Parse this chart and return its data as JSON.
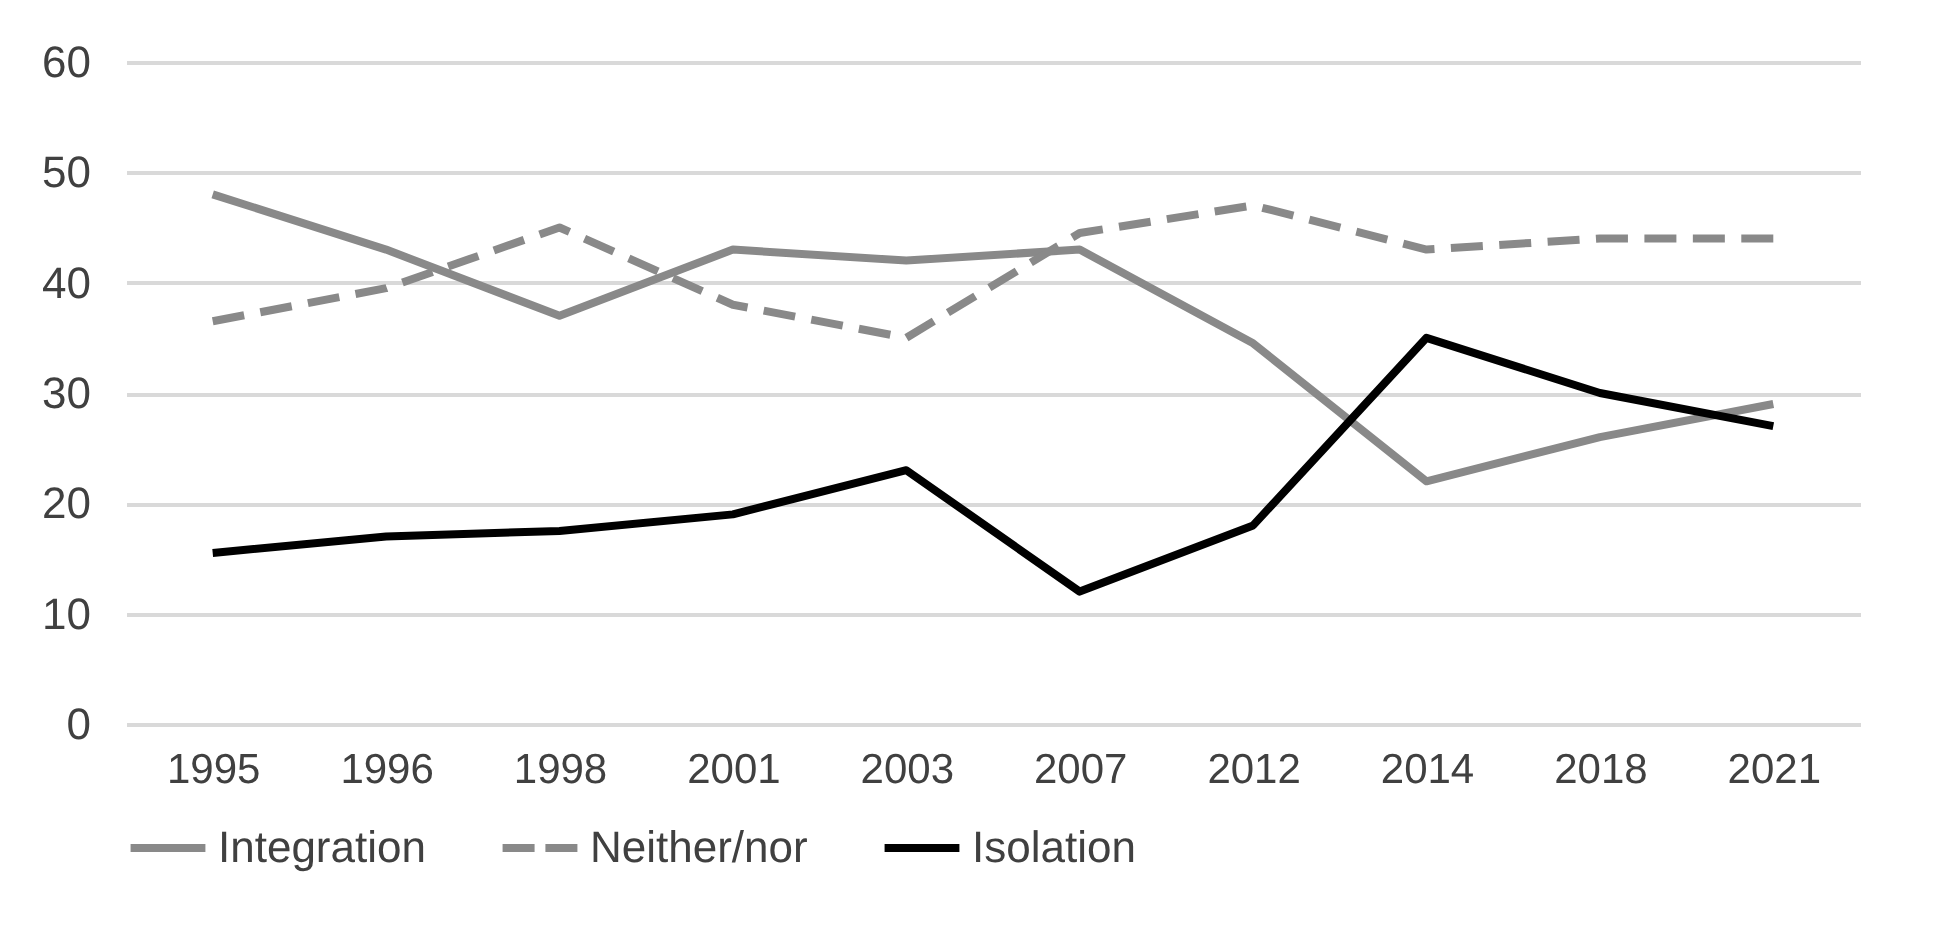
{
  "chart_data": {
    "type": "line",
    "categories": [
      "1995",
      "1996",
      "1998",
      "2001",
      "2003",
      "2007",
      "2012",
      "2014",
      "2018",
      "2021"
    ],
    "series": [
      {
        "name": "Integration",
        "color": "#898989",
        "line_style": "solid",
        "values": [
          48,
          43,
          37,
          43,
          42,
          43,
          34.5,
          22,
          26,
          29
        ]
      },
      {
        "name": "Neither/nor",
        "color": "#898989",
        "line_style": "dashed",
        "values": [
          36.5,
          39.5,
          45,
          38,
          35,
          44.5,
          47,
          43,
          44,
          44
        ]
      },
      {
        "name": "Isolation",
        "color": "#000000",
        "line_style": "solid",
        "values": [
          15.5,
          17,
          17.5,
          19,
          23,
          12,
          18,
          35,
          30,
          27
        ]
      }
    ],
    "ylim": [
      0,
      60
    ],
    "yticks": [
      0,
      10,
      20,
      30,
      40,
      50,
      60
    ],
    "grid": "y",
    "legend": "bottom",
    "marker": "none"
  }
}
